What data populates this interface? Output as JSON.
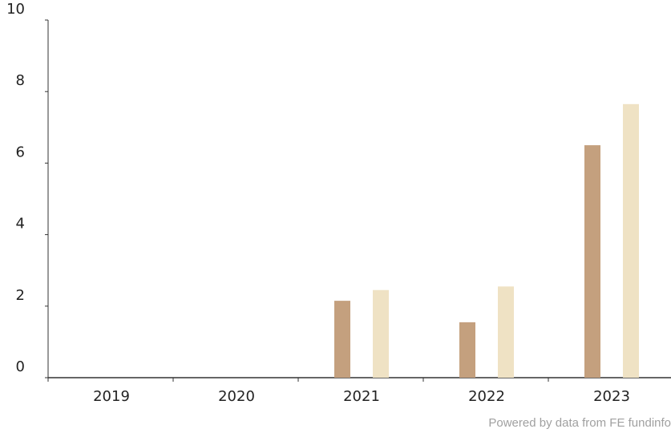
{
  "chart_data": {
    "type": "bar",
    "title": "",
    "xlabel": "",
    "ylabel": "",
    "categories": [
      "2019",
      "2020",
      "2021",
      "2022",
      "2023"
    ],
    "series": [
      {
        "values": [
          null,
          null,
          2.15,
          1.55,
          6.5
        ],
        "color": "#c4a07e"
      },
      {
        "values": [
          null,
          null,
          2.45,
          2.55,
          7.65
        ],
        "color": "#efe2c4"
      }
    ],
    "ylim": [
      0,
      10
    ],
    "yticks": [
      "0",
      "2",
      "4",
      "6",
      "8",
      "10"
    ],
    "grid": false,
    "legend": "none"
  },
  "footer": {
    "credit": "Powered by data from FE fundinfo"
  }
}
